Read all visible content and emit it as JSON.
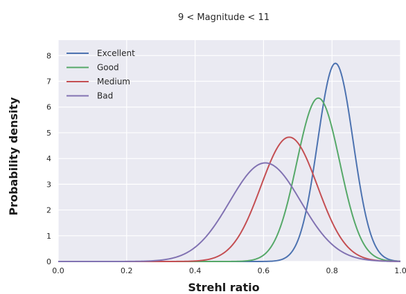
{
  "chart_data": {
    "type": "line",
    "title": "9 < Magnitude < 11",
    "xlabel": "Strehl ratio",
    "ylabel": "Probability density",
    "xlim": [
      0.0,
      1.0
    ],
    "ylim": [
      0,
      8.6
    ],
    "xticks": [
      "0.0",
      "0.2",
      "0.4",
      "0.6",
      "0.8",
      "1.0"
    ],
    "yticks": [
      "0",
      "1",
      "2",
      "3",
      "4",
      "5",
      "6",
      "7",
      "8"
    ],
    "grid": true,
    "legend_position": "top-left",
    "series": [
      {
        "name": "Excellent",
        "color": "#4c72b0",
        "peak_x": 0.81,
        "peak_y": 7.7
      },
      {
        "name": "Good",
        "color": "#55a868",
        "peak_x": 0.76,
        "peak_y": 6.35
      },
      {
        "name": "Medium",
        "color": "#c44e52",
        "peak_x": 0.675,
        "peak_y": 4.83
      },
      {
        "name": "Bad",
        "color": "#8172b2",
        "peak_x": 0.605,
        "peak_y": 3.83
      }
    ]
  }
}
